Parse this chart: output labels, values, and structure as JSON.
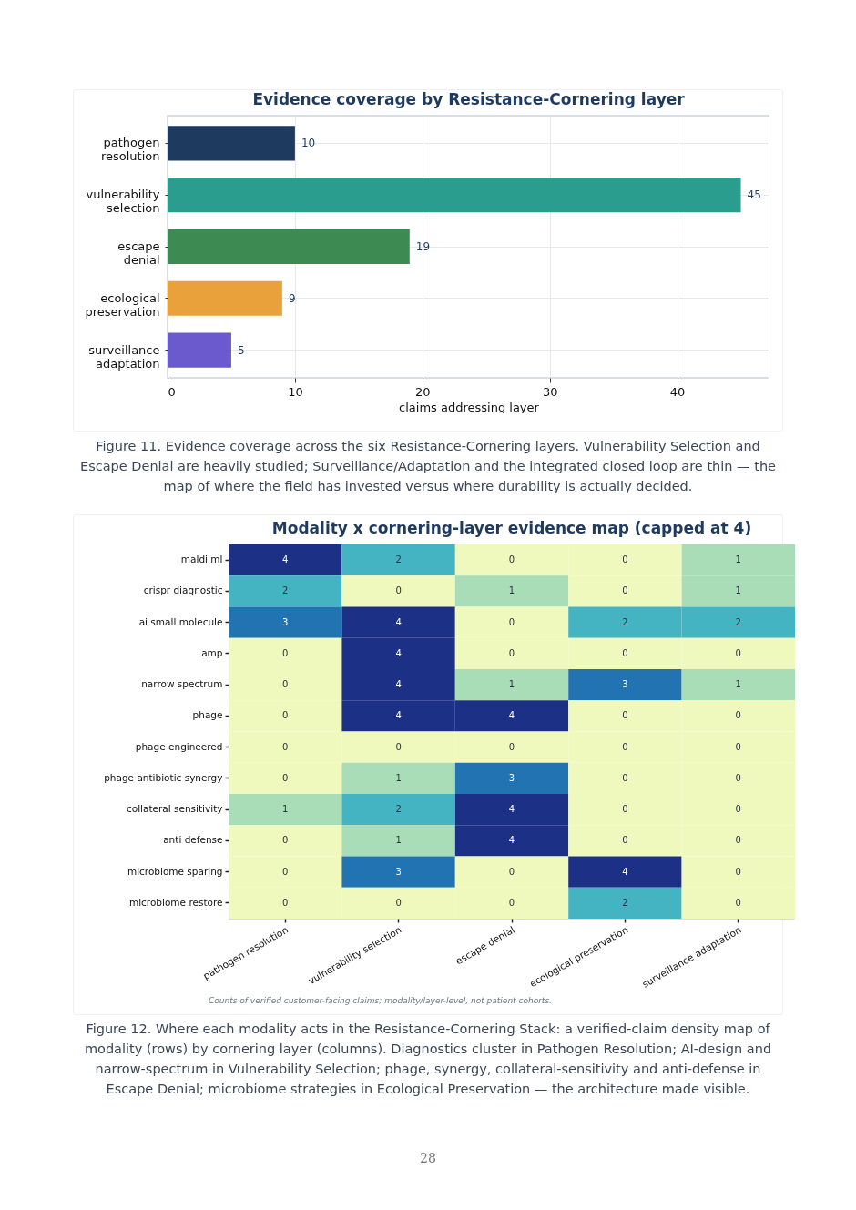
{
  "chart_data": [
    {
      "type": "bar",
      "orientation": "horizontal",
      "title": "Evidence coverage by Resistance-Cornering layer",
      "xlabel": "claims addressing layer",
      "categories": [
        "pathogen resolution",
        "vulnerability selection",
        "escape denial",
        "ecological preservation",
        "surveillance adaptation"
      ],
      "values": [
        10,
        45,
        19,
        9,
        5
      ],
      "colors": [
        "#1f3a5f",
        "#2a9d8f",
        "#3d8b52",
        "#e9a23b",
        "#6a5acd"
      ],
      "xlim": [
        0,
        47.25
      ],
      "xticks": [
        0,
        10,
        20,
        30,
        40
      ],
      "grid": true,
      "data_labels": true,
      "annotations": [
        "Figure 11. Evidence coverage across the six Resistance-Cornering layers. Vulnerability Selection and Escape Denial are heavily studied; Surveillance/Adaptation and the integrated closed loop are thin — the map of where the field has invested versus where durability is actually decided."
      ]
    },
    {
      "type": "heatmap",
      "title": "Modality x cornering-layer evidence map (capped at 4)",
      "categories": [
        "pathogen resolution",
        "vulnerability selection",
        "escape denial",
        "ecological preservation",
        "surveillance adaptation"
      ],
      "y_categories": [
        "maldi ml",
        "crispr diagnostic",
        "ai small molecule",
        "amp",
        "narrow spectrum",
        "phage",
        "phage engineered",
        "phage antibiotic synergy",
        "collateral sensitivity",
        "anti defense",
        "microbiome sparing",
        "microbiome restore"
      ],
      "cells": [
        [
          4,
          2,
          0,
          0,
          1
        ],
        [
          2,
          0,
          1,
          0,
          1
        ],
        [
          3,
          4,
          0,
          2,
          2
        ],
        [
          0,
          4,
          0,
          0,
          0
        ],
        [
          0,
          4,
          1,
          3,
          1
        ],
        [
          0,
          4,
          4,
          0,
          0
        ],
        [
          0,
          0,
          0,
          0,
          0
        ],
        [
          0,
          1,
          3,
          0,
          0
        ],
        [
          1,
          2,
          4,
          0,
          0
        ],
        [
          0,
          1,
          4,
          0,
          0
        ],
        [
          0,
          3,
          0,
          4,
          0
        ],
        [
          0,
          0,
          0,
          2,
          0
        ]
      ],
      "data_labels": true,
      "annotations": [
        "Counts of verified customer-facing claims; modality/layer-level, not patient cohorts.",
        "Figure 12. Where each modality acts in the Resistance-Cornering Stack: a verified-claim density map of modality (rows) by cornering layer (columns). Diagnostics cluster in Pathogen Resolution; AI-design and narrow-spectrum in Vulnerability Selection; phage, synergy, collateral-sensitivity and anti-defense in Escape Denial; microbiome strategies in Ecological Preservation — the architecture made visible.",
        "28"
      ]
    }
  ]
}
